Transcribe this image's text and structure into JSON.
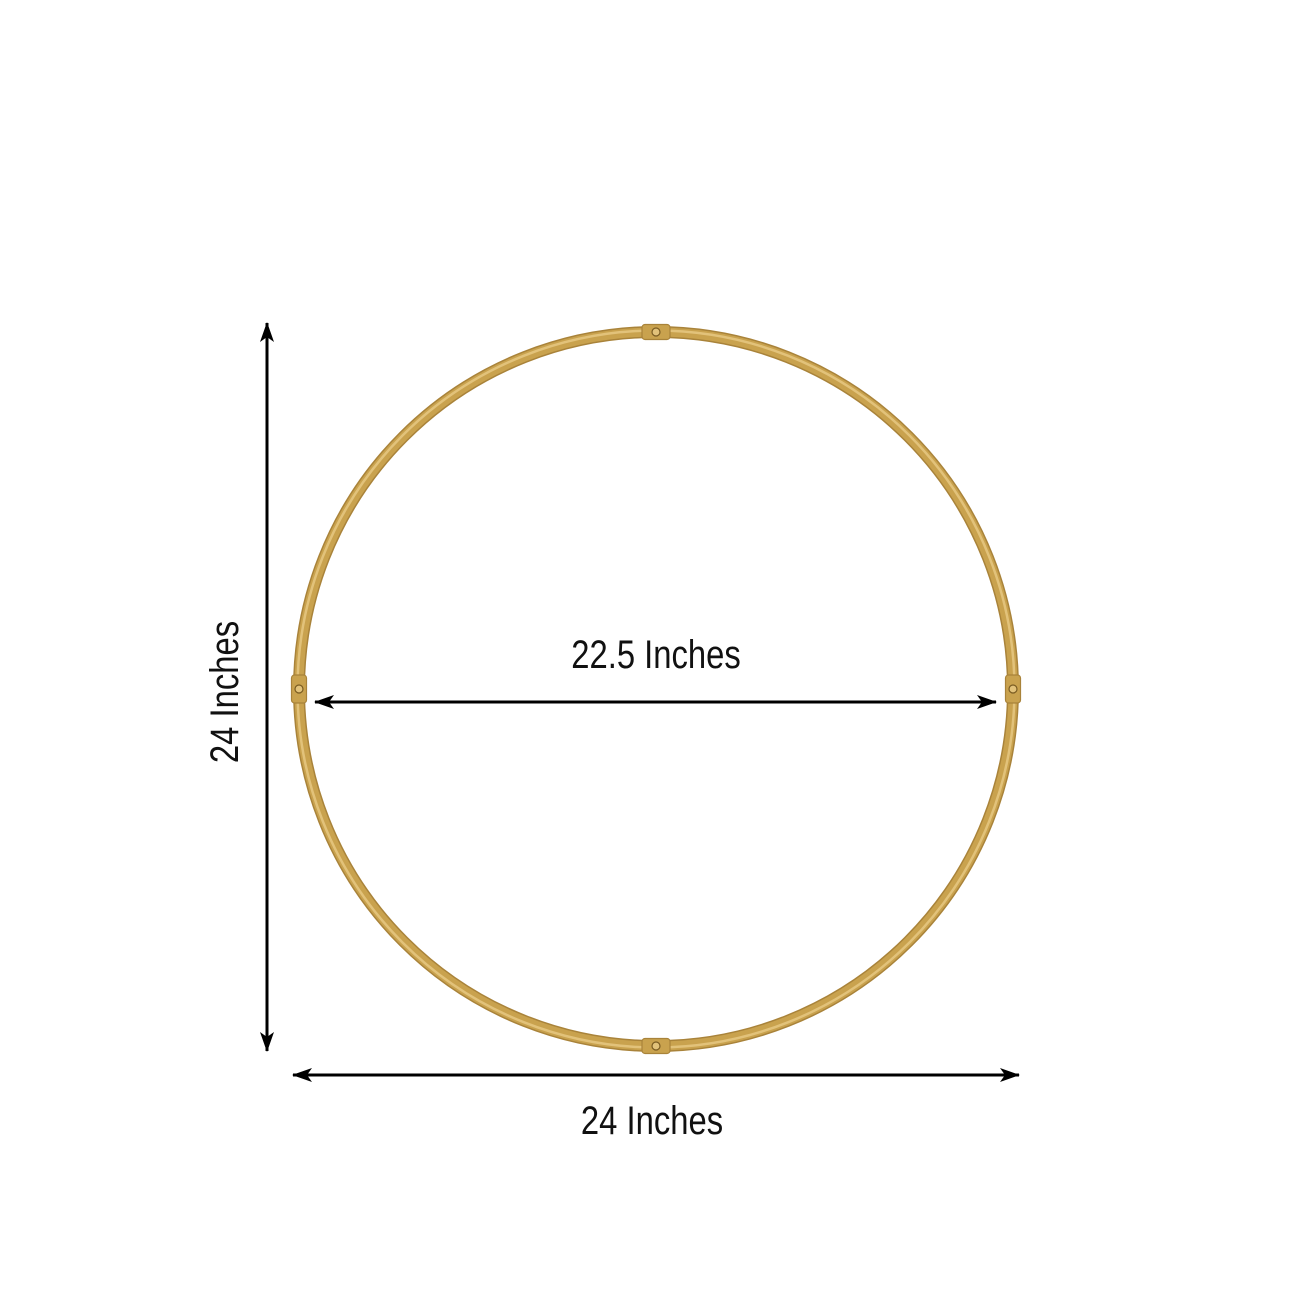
{
  "labels": {
    "inner_diameter": "22.5 Inches",
    "width": "24 Inches",
    "height": "24 Inches"
  },
  "colors": {
    "ring": "#c9a24e",
    "ring_highlight": "#e2c27a",
    "ring_shadow": "#a9833a",
    "arrow": "#000000"
  }
}
